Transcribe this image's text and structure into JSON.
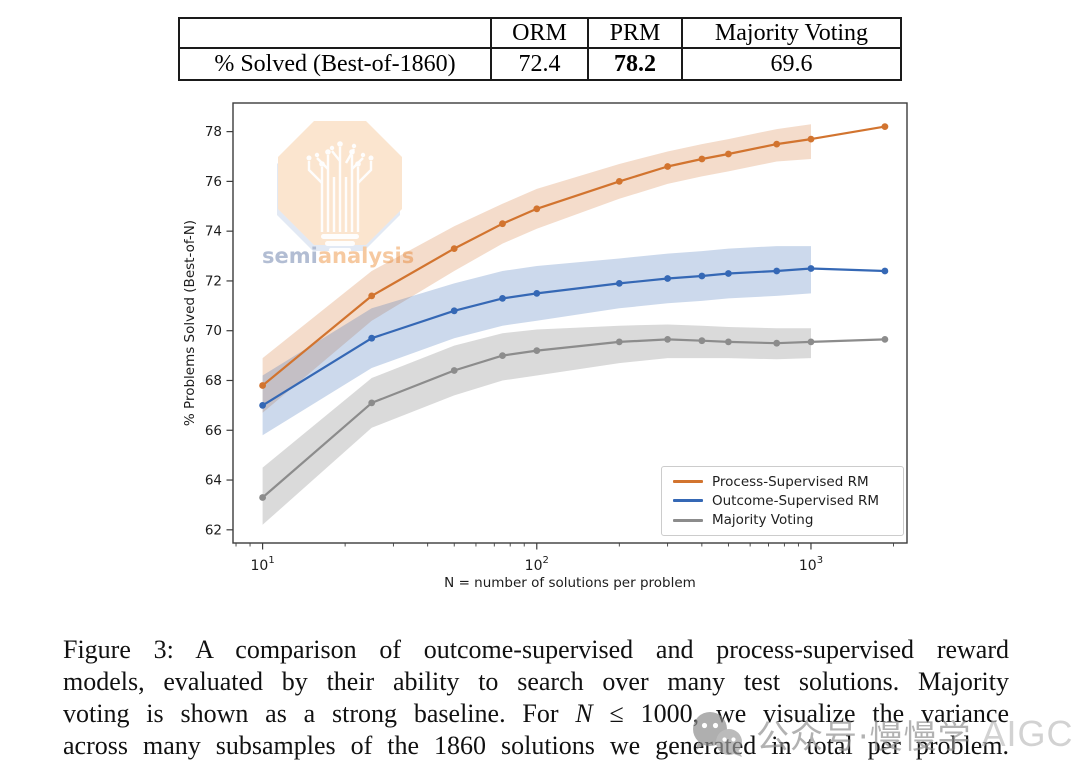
{
  "results_table": {
    "corner": "",
    "columns": [
      "ORM",
      "PRM",
      "Majority Voting"
    ],
    "row_label": "% Solved (Best-of-1860)",
    "values": {
      "orm": "72.4",
      "prm": "78.2",
      "majority_voting": "69.6"
    },
    "emphasized_column": "PRM"
  },
  "chart_data": {
    "type": "line",
    "x_scale": "log",
    "x": [
      10,
      25,
      50,
      75,
      100,
      200,
      300,
      400,
      500,
      750,
      1000,
      1860
    ],
    "xlabel": "N = number of solutions per problem",
    "ylabel": "% Problems Solved (Best-of-N)",
    "xlim": [
      7.8,
      2240
    ],
    "ylim": [
      61.47,
      79.15
    ],
    "y_ticks": [
      62,
      64,
      66,
      68,
      70,
      72,
      74,
      76,
      78
    ],
    "x_major_ticks": [
      10,
      100,
      1000
    ],
    "grid": false,
    "legend_position": "lower right",
    "series": [
      {
        "name": "Process-Supervised RM",
        "color": "#d2742f",
        "values": [
          67.8,
          71.4,
          73.3,
          74.3,
          74.9,
          76.0,
          76.6,
          76.9,
          77.1,
          77.5,
          77.7,
          78.2
        ],
        "band_upper": [
          68.9,
          72.4,
          74.2,
          75.1,
          75.7,
          76.7,
          77.2,
          77.5,
          77.7,
          78.1,
          78.3
        ],
        "band_lower": [
          66.7,
          70.4,
          72.4,
          73.5,
          74.1,
          75.3,
          75.9,
          76.2,
          76.4,
          76.8,
          76.9
        ],
        "band_x_end": 1000
      },
      {
        "name": "Outcome-Supervised RM",
        "color": "#3568b5",
        "values": [
          67.0,
          69.7,
          70.8,
          71.3,
          71.5,
          71.9,
          72.1,
          72.2,
          72.3,
          72.4,
          72.5,
          72.4
        ],
        "band_upper": [
          68.2,
          70.9,
          71.9,
          72.4,
          72.6,
          72.9,
          73.1,
          73.2,
          73.3,
          73.4,
          73.4
        ],
        "band_lower": [
          65.8,
          68.5,
          69.7,
          70.2,
          70.4,
          70.9,
          71.1,
          71.2,
          71.3,
          71.4,
          71.5
        ],
        "band_x_end": 1000
      },
      {
        "name": "Majority Voting",
        "color": "#8c8c8c",
        "values": [
          63.3,
          67.1,
          68.4,
          69.0,
          69.2,
          69.55,
          69.65,
          69.6,
          69.55,
          69.5,
          69.55,
          69.65
        ],
        "band_upper": [
          64.5,
          68.1,
          69.4,
          69.9,
          70.05,
          70.2,
          70.25,
          70.2,
          70.15,
          70.1,
          70.1
        ],
        "band_lower": [
          62.2,
          66.1,
          67.4,
          68.0,
          68.2,
          68.7,
          68.9,
          68.9,
          68.9,
          68.85,
          68.9
        ],
        "band_x_end": 1000
      }
    ]
  },
  "watermark_logo": {
    "semi": "semi",
    "analysis": "analysis"
  },
  "caption": {
    "line1": "Figure 3: A comparison of outcome-supervised and process-supervised reward",
    "line2": "models, evaluated by their ability to search over many test solutions. Majority",
    "line3_pre": "voting is shown as a strong baseline. For",
    "line3_math": "N",
    "line3_post": "≤ 1000, we visualize the variance",
    "line4": "across many subsamples of the 1860 solutions we generated in total per problem."
  },
  "watermark_bottom": {
    "text": "公众号·慢慢学",
    "suffix": "AIGC"
  }
}
